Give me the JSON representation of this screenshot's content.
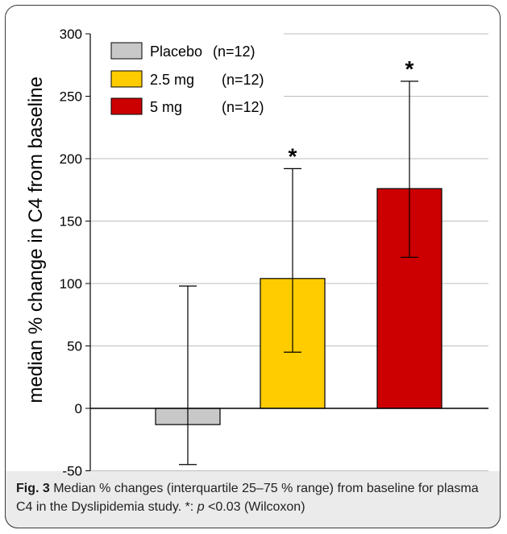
{
  "chart_data": {
    "type": "bar",
    "categories": [
      "Placebo (n=12)",
      "2.5 mg (n=12)",
      "5 mg (n=12)"
    ],
    "series": [
      {
        "values": [
          -13,
          104,
          176
        ],
        "error_low": [
          -45,
          45,
          121
        ],
        "error_high": [
          98,
          192,
          262
        ],
        "colors": [
          "#c8c8c8",
          "#ffcc00",
          "#cc0000"
        ],
        "significance": [
          "",
          "*",
          "*"
        ]
      }
    ],
    "legend": [
      {
        "label": "Placebo",
        "n": "(n=12)",
        "color": "#c8c8c8"
      },
      {
        "label": "2.5 mg",
        "n": "(n=12)",
        "color": "#ffcc00"
      },
      {
        "label": "5 mg",
        "n": "(n=12)",
        "color": "#cc0000"
      }
    ],
    "legend_position": "top-left",
    "yticks": [
      "300",
      "250",
      "200",
      "150",
      "100",
      "50",
      "0",
      "-50"
    ],
    "ylim": [
      -50,
      300
    ],
    "ylabel": "median % change in C4 from baseline",
    "grid": true
  },
  "caption": {
    "fig_label": "Fig. 3",
    "text_part1": " Median % changes (interquartile 25–75 % range) from baseline for plasma C4 in the Dyslipidemia study. *: ",
    "p_symbol": "p",
    "text_part2": " <0.03 (Wilcoxon)"
  }
}
